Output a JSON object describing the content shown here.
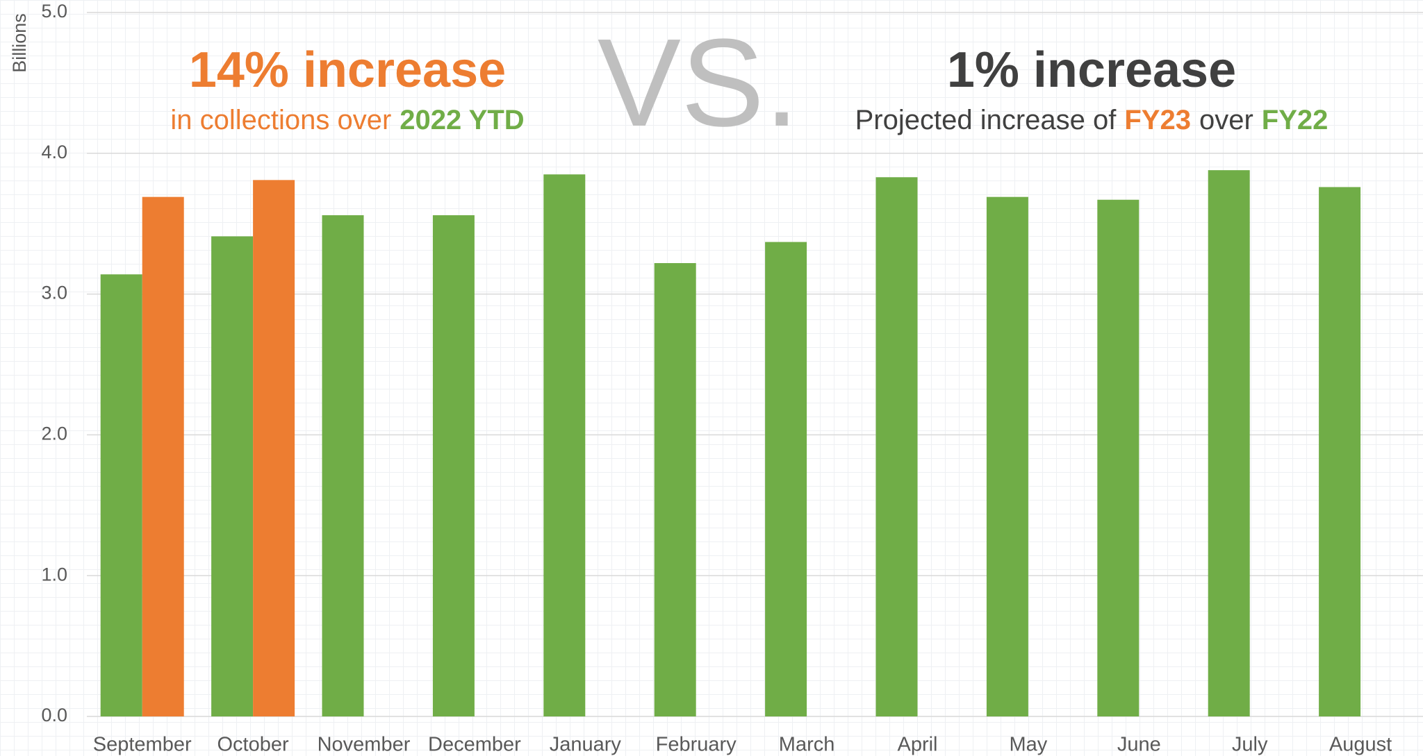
{
  "chart_data": {
    "type": "bar",
    "y_label": "Billions",
    "annotations": [
      {
        "parts": [
          {
            "text": "14% increase",
            "color": "#ed7d31"
          }
        ]
      },
      {
        "parts": [
          {
            "text": "in collections over",
            "color": "#ed7d31"
          },
          {
            "text": "2022 YTD",
            "color": "#70ad47"
          }
        ]
      },
      {
        "parts": [
          {
            "text": "VS.",
            "color": "#bfbfbf"
          }
        ]
      },
      {
        "parts": [
          {
            "text": "1% increase",
            "color": "#404040"
          }
        ]
      },
      {
        "parts": [
          {
            "text": "Projected increase of",
            "color": "#404040"
          },
          {
            "text": "FY23",
            "color": "#ed7d31"
          },
          {
            "text": "over",
            "color": "#404040"
          },
          {
            "text": "FY22",
            "color": "#70ad47"
          }
        ]
      }
    ],
    "categories": [
      "September",
      "October",
      "November",
      "December",
      "January",
      "February",
      "March",
      "April",
      "May",
      "June",
      "July",
      "August"
    ],
    "series": [
      {
        "color": "#70ad47",
        "values": [
          3.14,
          3.41,
          3.56,
          3.56,
          3.85,
          3.22,
          3.37,
          3.83,
          3.69,
          3.67,
          3.88,
          3.76
        ]
      },
      {
        "color": "#ed7d31",
        "values": [
          3.69,
          3.81,
          null,
          null,
          null,
          null,
          null,
          null,
          null,
          null,
          null,
          null
        ]
      }
    ],
    "ylim": [
      0,
      5
    ],
    "yticks": [
      {
        "value": 0,
        "label": "0.0"
      },
      {
        "value": 1,
        "label": "1.0"
      },
      {
        "value": 2,
        "label": "2.0"
      },
      {
        "value": 3,
        "label": "3.0"
      },
      {
        "value": 4,
        "label": "4.0"
      },
      {
        "value": 5,
        "label": "5.0"
      }
    ],
    "grid": true
  }
}
